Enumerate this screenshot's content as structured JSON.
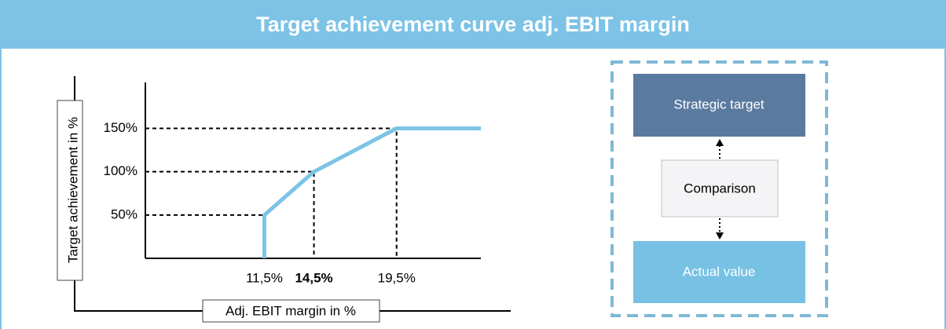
{
  "title": "Target achievement curve adj. EBIT margin",
  "chart_data": {
    "type": "line",
    "x": [
      11.5,
      11.5,
      14.5,
      19.5,
      24.6
    ],
    "series": [
      {
        "color": "#7cc3e6",
        "values": [
          0,
          50,
          100,
          150,
          150
        ]
      }
    ],
    "xlim": [
      4.3,
      24.6
    ],
    "xticks": [
      {
        "value": 11.5,
        "label": "11,5%"
      },
      {
        "value": 14.5,
        "label": "14,5%"
      },
      {
        "value": 19.5,
        "label": "19,5%"
      }
    ],
    "ylim": [
      0,
      203
    ],
    "yticks": [
      {
        "value": 50,
        "label": "50%"
      },
      {
        "value": 100,
        "label": "100%"
      },
      {
        "value": 150,
        "label": "150%"
      }
    ],
    "xlabel": "Adj. EBIT margin in %",
    "ylabel": "Target achievement in %"
  },
  "diagram": {
    "nodes": [
      {
        "label": "Strategic target"
      },
      {
        "label": "Comparison"
      },
      {
        "label": "Actual value"
      }
    ]
  }
}
